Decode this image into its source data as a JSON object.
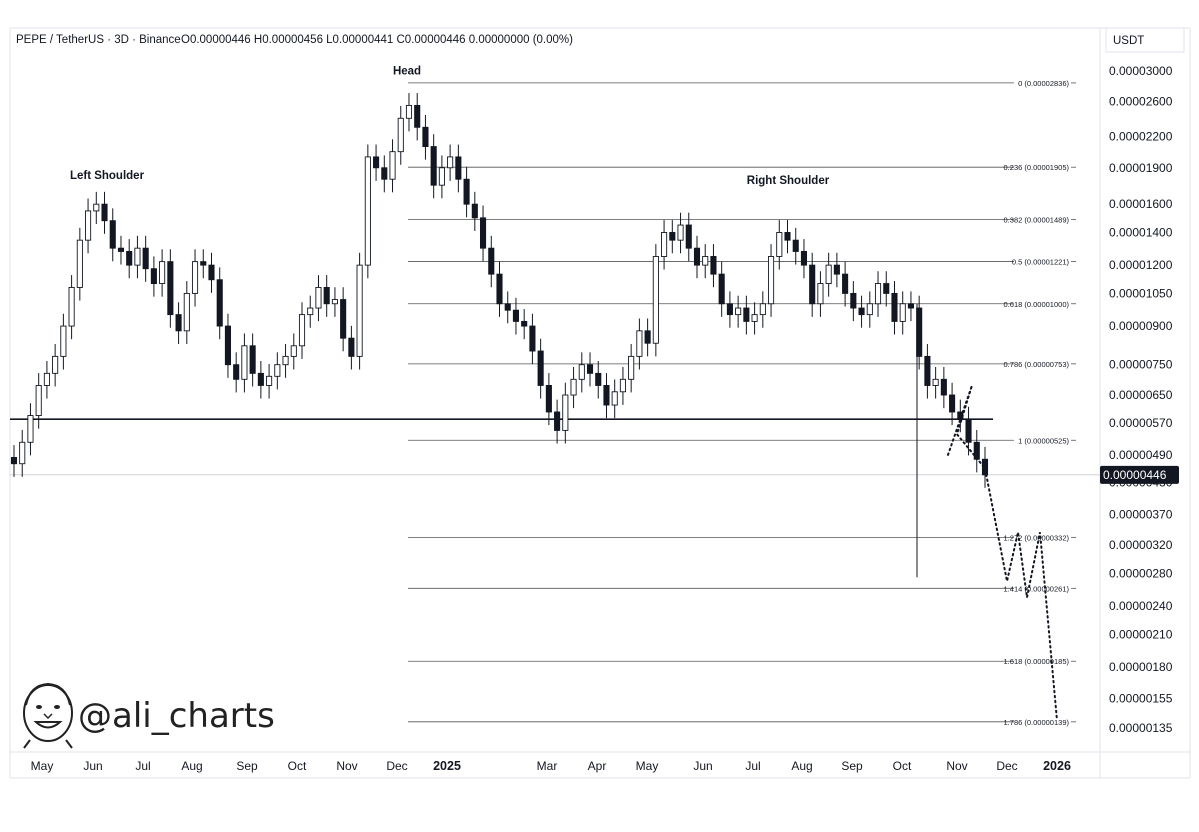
{
  "header": {
    "symbol": "PEPE / TetherUS · 3D · Binance",
    "ohlc": "O0.00000446  H0.00000456  L0.00000441  C0.00000446  0.00000000 (0.00%)"
  },
  "currency_button": "USDT",
  "watermark": {
    "handle": "@ali_charts",
    "logo": "cartoon-face-logo"
  },
  "colors": {
    "candle": "#131722",
    "axis_border": "#e0e3eb",
    "fib_line": "#555555",
    "price_tag_bg": "#131722"
  },
  "chart_data": {
    "type": "candlestick",
    "title": "PEPE / TetherUS · 3D · Binance",
    "scale": "log",
    "y_unit": "USDT",
    "x_ticks": [
      "May",
      "Jun",
      "Jul",
      "Aug",
      "Sep",
      "Oct",
      "Nov",
      "Dec",
      "2025",
      "Mar",
      "Apr",
      "May",
      "Jun",
      "Jul",
      "Aug",
      "Sep",
      "Oct",
      "Nov",
      "Dec",
      "2026"
    ],
    "y_ticks": [
      "0.00003000",
      "0.00002600",
      "0.00002200",
      "0.00001900",
      "0.00001600",
      "0.00001400",
      "0.00001200",
      "0.00001050",
      "0.00000900",
      "0.00000750",
      "0.00000650",
      "0.00000570",
      "0.00000490",
      "0.00000430",
      "0.00000370",
      "0.00000320",
      "0.00000280",
      "0.00000240",
      "0.00000210",
      "0.00000180",
      "0.00000155",
      "0.00000135"
    ],
    "current_price": "0.00000446",
    "neckline": 5.8e-06,
    "fib_levels": [
      {
        "label": "0 (0.00002836)",
        "value": 2.836e-05
      },
      {
        "label": "0.236 (0.00001905)",
        "value": 1.905e-05
      },
      {
        "label": "0.382 (0.00001489)",
        "value": 1.489e-05
      },
      {
        "label": "0.5 (0.00001221)",
        "value": 1.221e-05
      },
      {
        "label": "0.618 (0.00001000)",
        "value": 1e-05
      },
      {
        "label": "0.786 (0.00000753)",
        "value": 7.53e-06
      },
      {
        "label": "1 (0.00000525)",
        "value": 5.25e-06
      },
      {
        "label": "1.272 (0.00000332)",
        "value": 3.32e-06
      },
      {
        "label": "1.414 (0.00000261)",
        "value": 2.61e-06
      },
      {
        "label": "1.618 (0.00000185)",
        "value": 1.85e-06
      },
      {
        "label": "1.786 (0.00000139)",
        "value": 1.39e-06
      }
    ],
    "annotations": [
      {
        "text": "Left Shoulder",
        "value": 1.8e-05
      },
      {
        "text": "Head",
        "value": 2.95e-05
      },
      {
        "text": "Right Shoulder",
        "value": 1.76e-05
      }
    ],
    "projection_path": [
      4.9e-06,
      6.8e-06,
      5.4e-06,
      4.6e-06,
      2.7e-06,
      3.4e-06,
      2.5e-06,
      3.4e-06,
      1.4e-06
    ],
    "candle_series_closes": [
      4.7e-06,
      5.2e-06,
      5.9e-06,
      6.8e-06,
      7.2e-06,
      7.8e-06,
      9e-06,
      1.08e-05,
      1.35e-05,
      1.55e-05,
      1.6e-05,
      1.48e-05,
      1.3e-05,
      1.28e-05,
      1.2e-05,
      1.3e-05,
      1.18e-05,
      1.1e-05,
      1.22e-05,
      9.5e-06,
      8.8e-06,
      1.05e-05,
      1.22e-05,
      1.2e-05,
      1.12e-05,
      9e-06,
      7.5e-06,
      7e-06,
      8.2e-06,
      7.2e-06,
      6.8e-06,
      7.1e-06,
      7.5e-06,
      7.8e-06,
      8.2e-06,
      9.5e-06,
      9.8e-06,
      1.08e-05,
      1e-05,
      1.02e-05,
      8.5e-06,
      7.8e-06,
      1.2e-05,
      2e-05,
      1.9e-05,
      1.8e-05,
      2.05e-05,
      2.4e-05,
      2.55e-05,
      2.3e-05,
      2.1e-05,
      1.75e-05,
      1.9e-05,
      2e-05,
      1.8e-05,
      1.6e-05,
      1.5e-05,
      1.3e-05,
      1.15e-05,
      1e-05,
      9.7e-06,
      9.2e-06,
      9e-06,
      8e-06,
      6.8e-06,
      6e-06,
      5.5e-06,
      6.5e-06,
      7e-06,
      7.5e-06,
      7.2e-06,
      6.8e-06,
      6.2e-06,
      6.6e-06,
      7e-06,
      7.8e-06,
      8.8e-06,
      8.3e-06,
      1.25e-05,
      1.4e-05,
      1.35e-05,
      1.45e-05,
      1.3e-05,
      1.2e-05,
      1.25e-05,
      1.15e-05,
      1e-05,
      9.5e-06,
      9.8e-06,
      9.2e-06,
      9.5e-06,
      1e-05,
      1.25e-05,
      1.4e-05,
      1.35e-05,
      1.28e-05,
      1.2e-05,
      1e-05,
      1.1e-05,
      1.2e-05,
      1.15e-05,
      1.05e-05,
      9.8e-06,
      9.5e-06,
      1e-05,
      1.1e-05,
      1.05e-05,
      9.2e-06,
      1e-05,
      9.8e-06,
      7.8e-06,
      6.8e-06,
      7e-06,
      6.5e-06,
      6e-06,
      5.8e-06,
      5.2e-06,
      4.8e-06,
      4.46e-06
    ]
  }
}
